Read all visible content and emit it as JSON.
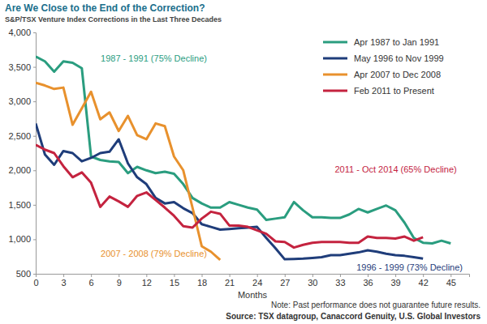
{
  "chart_data": {
    "type": "line",
    "title": "Are We Close to the End of the Correction?",
    "subtitle": "S&P/TSX Venture Index Corrections in the Last Three Decades",
    "x_label": "Months",
    "note": "Note: Past performance does not guarantee future results.",
    "source": "Source: TSX datagroup, Canaccord Genuity, U.S. Global Investors",
    "annotations": [
      "1987 - 1991 (75% Decline)",
      "1996 - 1999 (73% Decline)",
      "2007 - 2008 (79% Decline)",
      "2011 - Oct 2014 (65% Decline)"
    ],
    "x": [
      0,
      1,
      2,
      3,
      4,
      5,
      6,
      7,
      8,
      9,
      10,
      11,
      12,
      13,
      14,
      15,
      16,
      17,
      18,
      19,
      20,
      21,
      22,
      23,
      24,
      25,
      26,
      27,
      28,
      29,
      30,
      31,
      32,
      33,
      34,
      35,
      36,
      37,
      38,
      39,
      40,
      41,
      42,
      43,
      44,
      45
    ],
    "series": [
      {
        "name": "Apr 1987 to Jan 1991",
        "color": "#2a9d7f",
        "values": [
          3650,
          3580,
          3430,
          3580,
          3560,
          3480,
          2200,
          2150,
          2130,
          2120,
          1960,
          2050,
          2000,
          1960,
          1980,
          1950,
          1800,
          1600,
          1520,
          1460,
          1460,
          1540,
          1500,
          1460,
          1430,
          1280,
          1300,
          1320,
          1540,
          1420,
          1320,
          1320,
          1310,
          1310,
          1360,
          1440,
          1390,
          1440,
          1490,
          1420,
          1240,
          1020,
          950,
          940,
          980,
          940
        ]
      },
      {
        "name": "May 1996 to Nov 1999",
        "color": "#1f3d7a",
        "values": [
          2680,
          2230,
          2080,
          2280,
          2250,
          2130,
          2180,
          2250,
          2270,
          2450,
          2100,
          1900,
          1800,
          1600,
          1520,
          1540,
          1450,
          1380,
          1220,
          1180,
          1140,
          1150,
          1160,
          1170,
          1180,
          1020,
          870,
          710,
          715,
          720,
          730,
          740,
          770,
          770,
          790,
          810,
          840,
          820,
          790,
          770,
          760,
          740,
          720,
          null,
          null,
          null
        ]
      },
      {
        "name": "Apr 2007 to Dec 2008",
        "color": "#e8912d",
        "values": [
          3270,
          3230,
          3180,
          3200,
          2660,
          2900,
          3140,
          2740,
          2840,
          2570,
          2790,
          2510,
          2450,
          2680,
          2640,
          2200,
          2000,
          1460,
          900,
          820,
          700,
          null,
          null,
          null,
          null,
          null,
          null,
          null,
          null,
          null,
          null,
          null,
          null,
          null,
          null,
          null,
          null,
          null,
          null,
          null,
          null,
          null,
          null,
          null,
          null,
          null
        ]
      },
      {
        "name": "Feb 2011 to Present",
        "color": "#c4233f",
        "values": [
          2370,
          2300,
          2250,
          2060,
          1900,
          1970,
          1820,
          1470,
          1620,
          1550,
          1470,
          1630,
          1680,
          1570,
          1460,
          1340,
          1190,
          1170,
          1300,
          1400,
          1370,
          1200,
          1200,
          1180,
          1130,
          1080,
          970,
          960,
          880,
          920,
          950,
          960,
          960,
          960,
          950,
          950,
          1040,
          1020,
          1020,
          1010,
          1040,
          980,
          1030,
          null,
          null,
          null
        ]
      }
    ],
    "xlim": [
      0,
      47
    ],
    "xticks": [
      0,
      3,
      6,
      9,
      12,
      15,
      18,
      21,
      24,
      27,
      30,
      33,
      36,
      39,
      42,
      45
    ],
    "ylim": [
      500,
      4000
    ],
    "yticks": [
      500,
      {
        "value": 1000,
        "label": "1,000"
      },
      {
        "value": 1500,
        "label": "1,500"
      },
      {
        "value": 2000,
        "label": "2,000"
      },
      {
        "value": 2500,
        "label": "2,500"
      },
      {
        "value": 3000,
        "label": "3,000"
      },
      {
        "value": 3500,
        "label": "3,500"
      },
      {
        "value": 4000,
        "label": "4,000"
      }
    ],
    "grid": false,
    "legend": "top-right"
  }
}
